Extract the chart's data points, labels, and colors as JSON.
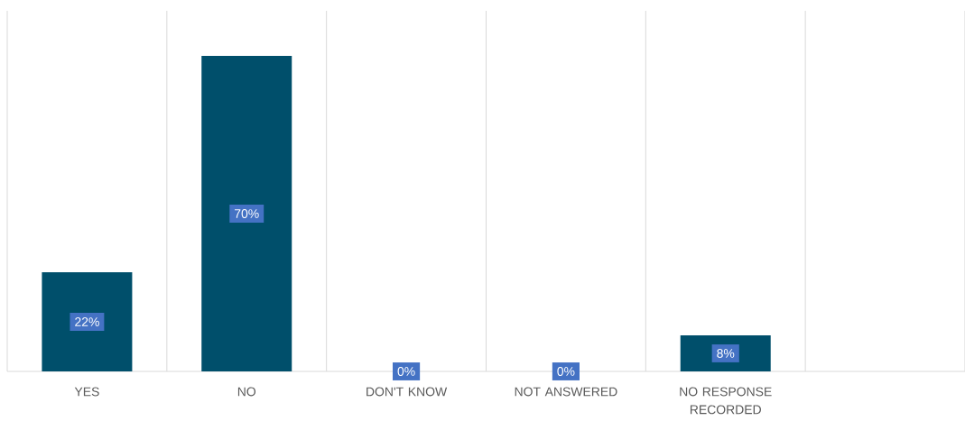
{
  "chart_data": {
    "type": "bar",
    "categories": [
      "YES",
      "NO",
      "DON'T KNOW",
      "NOT ANSWERED",
      "NO RESPONSE RECORDED",
      null
    ],
    "values": [
      22,
      70,
      0,
      0,
      8,
      null
    ],
    "value_labels": [
      "22%",
      "70%",
      "0%",
      "0%",
      "8%",
      null
    ],
    "color": "#004f6b",
    "grid": "x"
  }
}
